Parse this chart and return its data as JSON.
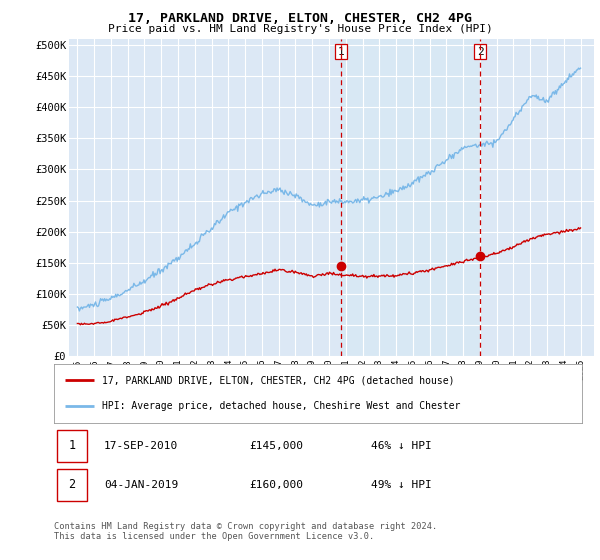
{
  "title": "17, PARKLAND DRIVE, ELTON, CHESTER, CH2 4PG",
  "subtitle": "Price paid vs. HM Land Registry's House Price Index (HPI)",
  "ylabel_ticks": [
    "£0",
    "£50K",
    "£100K",
    "£150K",
    "£200K",
    "£250K",
    "£300K",
    "£350K",
    "£400K",
    "£450K",
    "£500K"
  ],
  "ytick_values": [
    0,
    50000,
    100000,
    150000,
    200000,
    250000,
    300000,
    350000,
    400000,
    450000,
    500000
  ],
  "ylim": [
    0,
    510000
  ],
  "hpi_color": "#7ab8e8",
  "price_color": "#cc0000",
  "vline_color": "#cc0000",
  "shade_color": "#d8e8f4",
  "legend_entry1": "17, PARKLAND DRIVE, ELTON, CHESTER, CH2 4PG (detached house)",
  "legend_entry2": "HPI: Average price, detached house, Cheshire West and Chester",
  "sale1_date": "17-SEP-2010",
  "sale1_price": "£145,000",
  "sale1_info": "46% ↓ HPI",
  "sale2_date": "04-JAN-2019",
  "sale2_price": "£160,000",
  "sale2_info": "49% ↓ HPI",
  "footer": "Contains HM Land Registry data © Crown copyright and database right 2024.\nThis data is licensed under the Open Government Licence v3.0.",
  "sale1_x": 2010.72,
  "sale2_x": 2019.01,
  "sale1_price_val": 145000,
  "sale2_price_val": 160000,
  "background_color": "#dce8f5",
  "grid_color": "#ffffff",
  "xlim_left": 1994.5,
  "xlim_right": 2025.8
}
